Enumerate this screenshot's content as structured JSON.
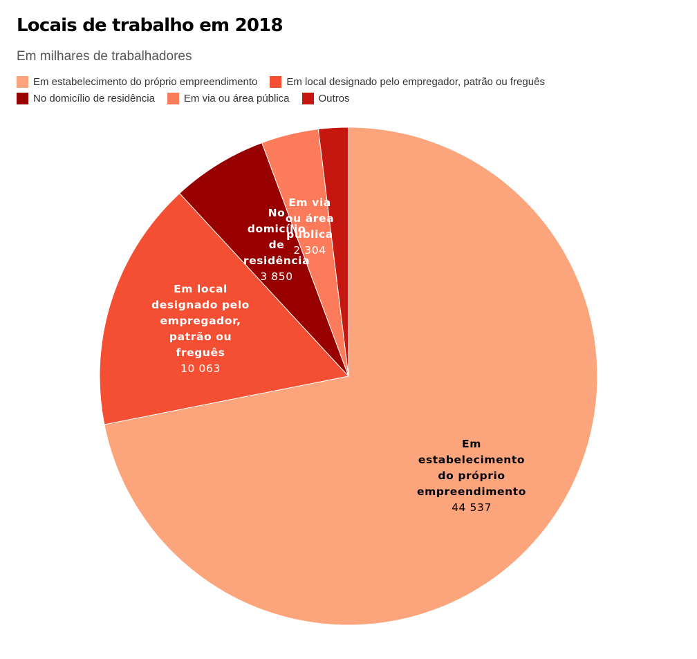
{
  "title": "Locais de trabalho em 2018",
  "subtitle": "Em milhares de trabalhadores",
  "chart_data": {
    "type": "pie",
    "title": "Locais de trabalho em 2018",
    "subtitle": "Em milhares de trabalhadores",
    "legend_position": "top-left",
    "slices": [
      {
        "name": "Em estabelecimento do próprio empreendimento",
        "label_lines": [
          "Em",
          "estabelecimento",
          "do próprio",
          "empreendimento"
        ],
        "value_label": "44 537",
        "value": 44537,
        "color": "#FCA47C",
        "label_color": "#000000"
      },
      {
        "name": "Em local designado pelo empregador, patrão ou freguês",
        "label_lines": [
          "Em local",
          "designado pelo",
          "empregador,",
          "patrão ou",
          "freguês"
        ],
        "value_label": "10 063",
        "value": 10063,
        "color": "#F44F32",
        "label_color": "#FFFFFF"
      },
      {
        "name": "No domicílio de residência",
        "label_lines": [
          "No",
          "domicílio",
          "de",
          "residência"
        ],
        "value_label": "3 850",
        "value": 3850,
        "color": "#980000",
        "label_color": "#FFFFFF"
      },
      {
        "name": "Em via ou área pública",
        "label_lines": [
          "Em via",
          "ou área",
          "pública"
        ],
        "value_label": "2 304",
        "value": 2304,
        "color": "#FB7B5B",
        "label_color": "#FFFFFF"
      },
      {
        "name": "Outros",
        "label_lines": [],
        "value_label": "",
        "value": 1200,
        "color": "#C5160F",
        "label_color": "#FFFFFF"
      }
    ]
  }
}
